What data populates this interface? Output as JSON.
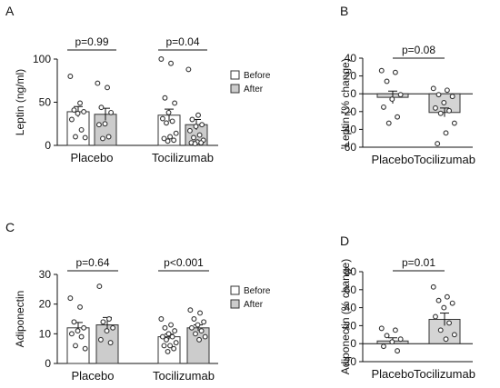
{
  "panels": [
    {
      "letter": "A",
      "type": "bar",
      "ylabel": "Leptin (ng/ml)",
      "ylim": [
        0,
        100
      ],
      "yticks": [
        0,
        50,
        100
      ],
      "categories": [
        "Placebo",
        "Tocilizumab"
      ],
      "legend": [
        "Before",
        "After"
      ],
      "comparisons": [
        "p=0.99",
        "p=0.04"
      ],
      "series": [
        {
          "name": "Before",
          "values": [
            39,
            35
          ],
          "sem": [
            6,
            7
          ],
          "points": [
            [
              80,
              49,
              41,
              39,
              37,
              30,
              18,
              10,
              9
            ],
            [
              100,
              95,
              55,
              49,
              38,
              31,
              28,
              26,
              14,
              10,
              8,
              6,
              5
            ]
          ]
        },
        {
          "name": "After",
          "values": [
            36,
            24
          ],
          "sem": [
            7,
            6
          ],
          "points": [
            [
              72,
              67,
              44,
              38,
              25,
              24,
              10,
              8
            ],
            [
              88,
              35,
              30,
              24,
              22,
              17,
              12,
              9,
              6,
              4,
              3,
              3,
              2
            ]
          ]
        }
      ]
    },
    {
      "letter": "B",
      "type": "bar",
      "ylabel": "Leptin (% change)",
      "ylim": [
        -60,
        40
      ],
      "yticks": [
        -60,
        -40,
        -20,
        0,
        20,
        40
      ],
      "categories": [
        "Placebo",
        "Tocilizumab"
      ],
      "comparisons": [
        "p=0.08"
      ],
      "series": [
        {
          "values": [
            -4,
            -21
          ],
          "sem": [
            7,
            5
          ],
          "points": [
            [
              26,
              24,
              14,
              -1,
              -6,
              -15,
              -26,
              -33
            ],
            [
              6,
              4,
              -1,
              -3,
              -10,
              -16,
              -19,
              -22,
              -33,
              -44,
              -56
            ]
          ]
        }
      ]
    },
    {
      "letter": "C",
      "type": "bar",
      "ylabel": "Adiponectin",
      "ylim": [
        0,
        30
      ],
      "yticks": [
        0,
        10,
        20,
        30
      ],
      "categories": [
        "Placebo",
        "Tocilizumab"
      ],
      "legend": [
        "Before",
        "After"
      ],
      "comparisons": [
        "p=0.64",
        "p<0.001"
      ],
      "series": [
        {
          "name": "Before",
          "values": [
            12,
            9
          ],
          "sem": [
            1.8,
            0.9
          ],
          "points": [
            [
              22,
              19,
              14,
              12,
              11,
              10,
              9,
              6,
              5
            ],
            [
              15,
              13,
              12,
              11,
              10,
              9,
              9,
              8,
              7,
              6,
              6,
              5,
              4
            ]
          ]
        },
        {
          "name": "After",
          "values": [
            13,
            12
          ],
          "sem": [
            2.5,
            1.0
          ],
          "points": [
            [
              26,
              15,
              14,
              12,
              11,
              8,
              7
            ],
            [
              18,
              17,
              15,
              14,
              13,
              12,
              11,
              10,
              9,
              8
            ]
          ]
        }
      ]
    },
    {
      "letter": "D",
      "type": "bar",
      "ylabel": "Adiponectin (% change)",
      "ylim": [
        -20,
        80
      ],
      "yticks": [
        -20,
        0,
        20,
        40,
        60,
        80
      ],
      "categories": [
        "Placebo",
        "Tocilizumab"
      ],
      "comparisons": [
        "p=0.01"
      ],
      "series": [
        {
          "values": [
            3,
            27
          ],
          "sem": [
            3.5,
            7
          ],
          "points": [
            [
              17,
              15,
              9,
              5,
              2,
              -3,
              -8
            ],
            [
              63,
              52,
              48,
              45,
              40,
              30,
              23,
              15,
              10,
              5
            ]
          ]
        }
      ]
    }
  ],
  "colors": {
    "before": "#ffffff",
    "after": "#cccccc",
    "single": "#d4d4d4",
    "stroke": "#333333",
    "point_stroke": "#333333"
  }
}
